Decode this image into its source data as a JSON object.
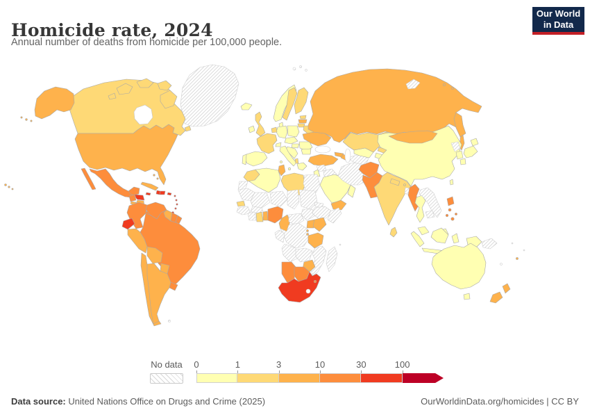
{
  "header": {
    "title": "Homicide rate, 2024",
    "subtitle": "Annual number of deaths from homicide per 100,000 people.",
    "logo": {
      "line1": "Our World",
      "line2": "in Data"
    }
  },
  "legend": {
    "no_data_label": "No data",
    "ticks": [
      "0",
      "1",
      "3",
      "10",
      "30",
      "100"
    ]
  },
  "footer": {
    "source_prefix": "Data source:",
    "source_text": " United Nations Office on Drugs and Crime (2025)",
    "credit": "OurWorldinData.org/homicides | CC BY"
  },
  "colors": {
    "title": "#373737",
    "subtitle": "#636363",
    "legend_text": "#5b5b5b",
    "footer_text": "#5b5b5b",
    "logo_bg": "#12294B",
    "logo_accent": "#C32026",
    "country_border": "#a8a8a8",
    "no_data_border": "#c9c9c9",
    "ocean": "#ffffff"
  },
  "chart_data": {
    "type": "choropleth_map",
    "title": "Homicide rate, 2024",
    "unit": "annual deaths from homicide per 100,000 people",
    "legend_position": "bottom",
    "scale": {
      "ticks": [
        0,
        1,
        3,
        10,
        30,
        100
      ],
      "open_ended_upper": true,
      "bins": [
        {
          "range": "0-1",
          "color": "#FFFFB2"
        },
        {
          "range": "1-3",
          "color": "#FED976"
        },
        {
          "range": "3-10",
          "color": "#FEB24C"
        },
        {
          "range": "10-30",
          "color": "#FD8D3C"
        },
        {
          "range": "30-100",
          "color": "#F03B20"
        },
        {
          "range": "100+",
          "color": "#BD0026"
        }
      ],
      "no_data": {
        "style": "hatched",
        "line_color": "#d6d6d6"
      }
    },
    "bucket_colors": {
      "0-1": "#FFFFB2",
      "1-3": "#FED976",
      "3-10": "#FEB24C",
      "10-30": "#FD8D3C",
      "30-100": "#F03B20",
      "100+": "#BD0026"
    },
    "countries": {
      "greenland": "no-data",
      "canada": "1-3",
      "united-states": "3-10",
      "mexico": "10-30",
      "guatemala": "10-30",
      "honduras": "30-100",
      "el-salvador": "3-10",
      "nicaragua": "3-10",
      "costa-rica": "10-30",
      "panama": "10-30",
      "cuba": "3-10",
      "bahamas": "3-10",
      "jamaica": "30-100",
      "haiti": "30-100",
      "dominican-republic": "30-100",
      "puerto-rico": "30-100",
      "lesser-antilles": "30-100",
      "trinidad-and-tobago": "30-100",
      "colombia": "10-30",
      "venezuela": "10-30",
      "guyana": "3-10",
      "suriname": "10-30",
      "french-guiana": "10-30",
      "ecuador": "30-100",
      "peru": "3-10",
      "brazil": "10-30",
      "bolivia": "3-10",
      "paraguay": "3-10",
      "chile": "3-10",
      "argentina": "3-10",
      "uruguay": "10-30",
      "falkland-islands": "no-data",
      "iceland": "0-1",
      "ireland": "0-1",
      "united-kingdom": "1-3",
      "norway": "0-1",
      "sweden": "1-3",
      "finland": "1-3",
      "denmark": "0-1",
      "estonia": "1-3",
      "latvia": "3-10",
      "lithuania": "1-3",
      "belarus": "1-3",
      "poland": "0-1",
      "germany": "0-1",
      "benelux": "1-3",
      "france": "1-3",
      "spain": "0-1",
      "portugal": "0-1",
      "italy": "0-1",
      "switzerland": "0-1",
      "austria-czechia": "0-1",
      "hungary": "0-1",
      "western-balkans": "0-1",
      "albania": "1-3",
      "greece": "0-1",
      "romania": "0-1",
      "bulgaria": "0-1",
      "moldova": "1-3",
      "ukraine": "3-10",
      "russia": "3-10",
      "svalbard": "no-data",
      "novaya-zemlya": "no-data",
      "turkey": "3-10",
      "georgia": "3-10",
      "azerbaijan": "3-10",
      "syria": "no-data",
      "iraq": "no-data",
      "iran": "no-data",
      "israel-and-jordan": "0-1",
      "saudi-arabia": "0-1",
      "yemen": "3-10",
      "oman": "0-1",
      "kazakhstan": "1-3",
      "turkmenistan": "no-data",
      "uzbekistan": "0-1",
      "kyrgyzstan": "1-3",
      "tajikistan": "0-1",
      "afghanistan": "10-30",
      "pakistan": "10-30",
      "india": "1-3",
      "nepal": "1-3",
      "bhutan": "1-3",
      "bangladesh": "no-data",
      "sri-lanka": "1-3",
      "china": "0-1",
      "mongolia": "3-10",
      "north-korea": "no-data",
      "south-korea": "0-1",
      "japan": "0-1",
      "taiwan": "0-1",
      "myanmar": "10-30",
      "thailand": "0-1",
      "vietnam-and-laos": "no-data",
      "cambodia": "no-data",
      "malaysia": "0-1",
      "indonesia": "0-1",
      "philippines": "10-30",
      "papua-new-guinea": "no-data",
      "australia": "0-1",
      "new-zealand": "3-10",
      "fiji": "3-10",
      "new-caledonia": "no-data",
      "morocco": "1-3",
      "western-sahara": "no-data",
      "algeria": "0-1",
      "tunisia": "3-10",
      "libya": "1-3",
      "egypt": "no-data",
      "mauritania": "no-data",
      "mali": "no-data",
      "niger": "no-data",
      "chad": "no-data",
      "sudan": "no-data",
      "south-sudan": "no-data",
      "eritrea-and-djibouti": "no-data",
      "ethiopia": "no-data",
      "somalia": "no-data",
      "senegal": "1-3",
      "guinea-sierra-leone-liberia": "no-data",
      "ivory-coast": "no-data",
      "burkina-faso": "no-data",
      "ghana": "1-3",
      "togo-benin": "3-10",
      "nigeria": "10-30",
      "cameroon": "3-10",
      "central-african-republic": "no-data",
      "democratic-republic-of-congo": "no-data",
      "gabon-congo": "no-data",
      "uganda": "3-10",
      "kenya": "3-10",
      "rwanda-burundi": "3-10",
      "tanzania": "3-10",
      "angola": "no-data",
      "zambia": "no-data",
      "malawi": "3-10",
      "mozambique": "no-data",
      "zimbabwe": "3-10",
      "namibia": "10-30",
      "botswana": "10-30",
      "south-africa": "30-100",
      "lesotho": "no-data",
      "eswatini": "10-30",
      "madagascar": "no-data"
    }
  }
}
